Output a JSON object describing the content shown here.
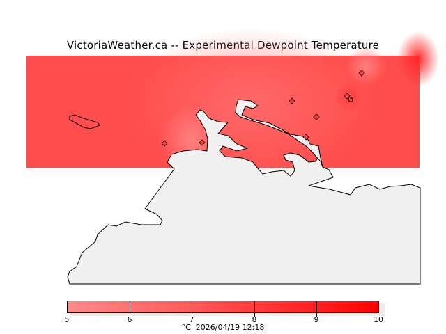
{
  "title": "VictoriaWeather.ca -- Experimental Dewpoint Temperature",
  "colorbar": {
    "ticks": [
      "5",
      "6",
      "7",
      "8",
      "9",
      "10"
    ],
    "unit": "°C",
    "timestamp": "2026/04/19 12:18",
    "color_min": "#ff8a8a",
    "color_max": "#ff0000"
  },
  "colors": {
    "land": "#f0f0f0",
    "field_base": "#ff5050"
  }
}
